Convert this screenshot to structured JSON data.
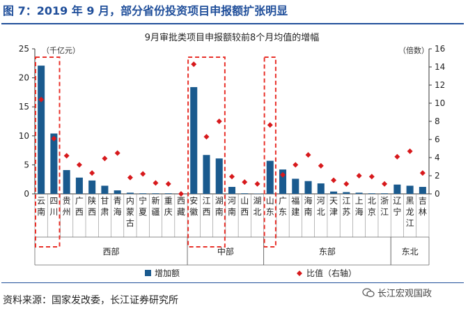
{
  "figure_title": "图 7：2019 年 9 月，部分省份投资项目申报额扩张明显",
  "source": "资料来源：国家发改委，长江证券研究所",
  "watermark": "长江宏观国政",
  "colors": {
    "bar": "#1a5a8e",
    "marker": "#d7191c",
    "highlight_box": "#e8312a",
    "title": "#1f4e9a"
  },
  "chart_data": {
    "type": "bar",
    "title": "9月审批类项目申报额较前8个月均值的增幅",
    "left_axis_unit": "（千亿元）",
    "right_axis_unit": "（倍数）",
    "ylim_left": [
      0,
      25
    ],
    "yticks_left": [
      "0",
      "5",
      "10",
      "15",
      "20",
      "25"
    ],
    "ylim_right": [
      0,
      16
    ],
    "yticks_right": [
      "0",
      "2",
      "4",
      "6",
      "8",
      "10",
      "12",
      "14",
      "16"
    ],
    "categories": [
      "云南",
      "四川",
      "贵州",
      "广西",
      "陕西",
      "甘肃",
      "青海",
      "内蒙古",
      "宁夏",
      "新疆",
      "重庆",
      "西藏",
      "安徽",
      "江西",
      "湖南",
      "河南",
      "山西",
      "湖北",
      "山东",
      "广东",
      "福建",
      "海南",
      "河北",
      "天津",
      "江苏",
      "上海",
      "北京",
      "浙江",
      "辽宁",
      "黑龙江",
      "吉林"
    ],
    "series": [
      {
        "name": "增加额",
        "type": "bar",
        "axis": "left",
        "values": [
          22.1,
          10.4,
          4.1,
          2.8,
          2.3,
          1.4,
          0.6,
          0.2,
          0.1,
          0.1,
          0.1,
          0.05,
          18.4,
          6.7,
          6.1,
          1.2,
          0.1,
          0.05,
          5.7,
          4.2,
          2.6,
          2.2,
          1.8,
          0.4,
          0.3,
          0.2,
          0.1,
          0.1,
          1.6,
          1.4,
          1.2
        ]
      },
      {
        "name": "比值（右轴）",
        "type": "scatter",
        "axis": "right",
        "values": [
          10.4,
          6.1,
          4.2,
          3.2,
          2.3,
          3.9,
          4.5,
          1.8,
          2.2,
          1.2,
          1.1,
          0.0,
          14.3,
          6.3,
          8.0,
          1.9,
          1.3,
          1.1,
          7.6,
          2.1,
          3.2,
          4.3,
          3.1,
          1.5,
          1.1,
          2.0,
          1.9,
          1.1,
          4.1,
          4.7,
          2.3
        ]
      }
    ],
    "regions": [
      {
        "label": "西部",
        "from": 0,
        "to": 11
      },
      {
        "label": "中部",
        "from": 12,
        "to": 17
      },
      {
        "label": "东部",
        "from": 18,
        "to": 27
      },
      {
        "label": "东北",
        "from": 28,
        "to": 30
      }
    ],
    "highlights": [
      {
        "from": 0,
        "to": 1
      },
      {
        "from": 12,
        "to": 14
      },
      {
        "from": 18,
        "to": 18
      }
    ],
    "legend": {
      "position": "bottom",
      "items": [
        "增加额",
        "比值（右轴）"
      ]
    },
    "grid": false
  }
}
